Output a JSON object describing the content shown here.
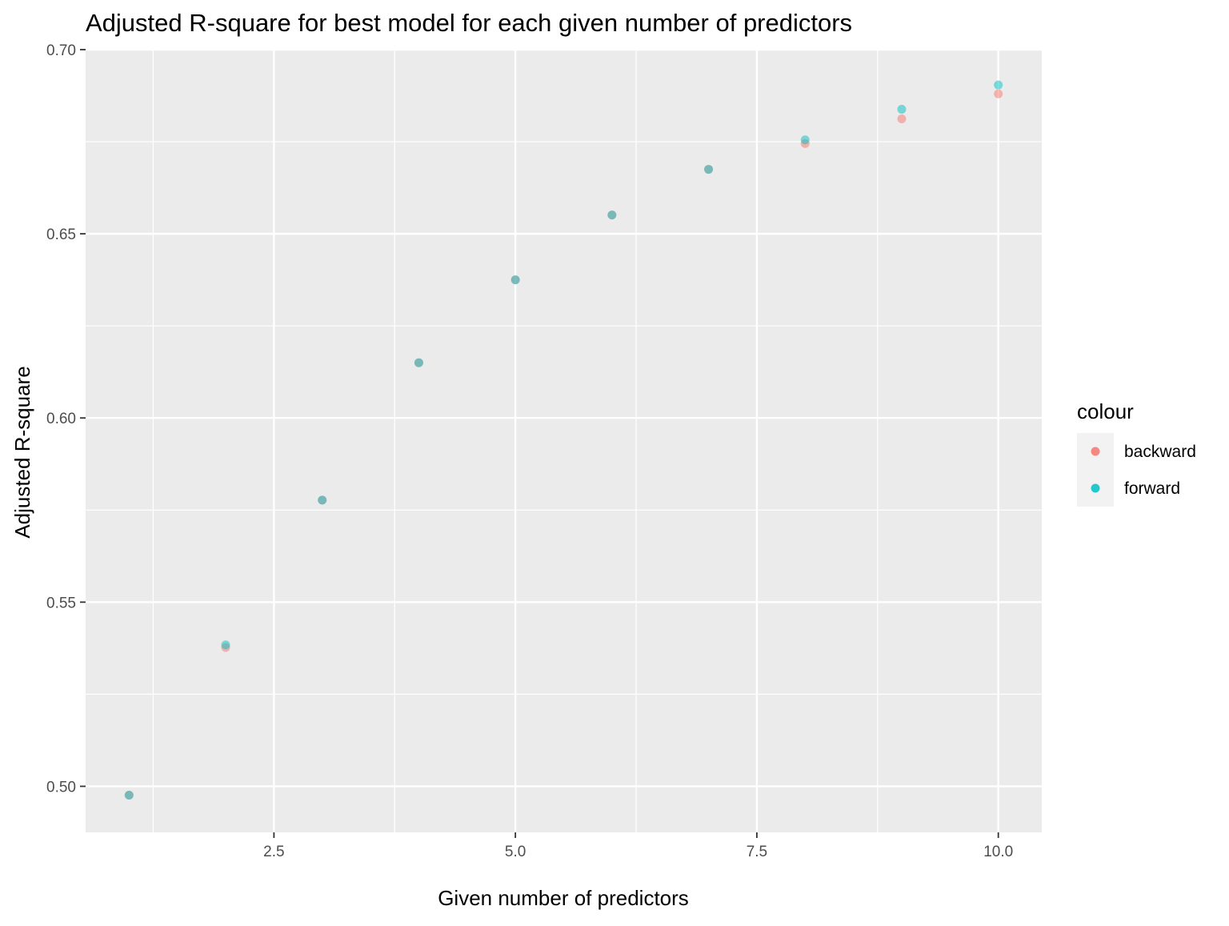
{
  "chart_data": {
    "type": "scatter",
    "title": "Adjusted R-square for best model for each given number of predictors",
    "xlabel": "Given number of predictors",
    "ylabel": "Adjusted R-square",
    "xlim": [
      0.55,
      10.45
    ],
    "ylim": [
      0.4875,
      0.7
    ],
    "x_major_ticks": [
      2.5,
      5.0,
      7.5,
      10.0
    ],
    "x_tick_labels": [
      "2.5",
      "5.0",
      "7.5",
      "10.0"
    ],
    "x_minor_ticks": [
      1.25,
      3.75,
      6.25,
      8.75
    ],
    "y_major_ticks": [
      0.5,
      0.55,
      0.6,
      0.65,
      0.7
    ],
    "y_tick_labels": [
      "0.50",
      "0.55",
      "0.60",
      "0.65",
      "0.70"
    ],
    "y_minor_ticks": [
      0.525,
      0.575,
      0.625,
      0.675
    ],
    "grid": true,
    "legend": {
      "title": "colour",
      "placement": "right",
      "entries": [
        "backward",
        "forward"
      ]
    },
    "series": [
      {
        "name": "backward",
        "color": "#F8766D",
        "x": [
          1,
          2,
          3,
          4,
          5,
          6,
          7,
          8,
          9,
          10
        ],
        "y": [
          0.4976,
          0.5377,
          0.5777,
          0.615,
          0.6375,
          0.6551,
          0.6675,
          0.6745,
          0.6812,
          0.688
        ]
      },
      {
        "name": "forward",
        "color": "#00BFC4",
        "x": [
          1,
          2,
          3,
          4,
          5,
          6,
          7,
          8,
          9,
          10
        ],
        "y": [
          0.4976,
          0.5384,
          0.5777,
          0.615,
          0.6375,
          0.6551,
          0.6675,
          0.6755,
          0.6838,
          0.6904
        ]
      }
    ]
  }
}
